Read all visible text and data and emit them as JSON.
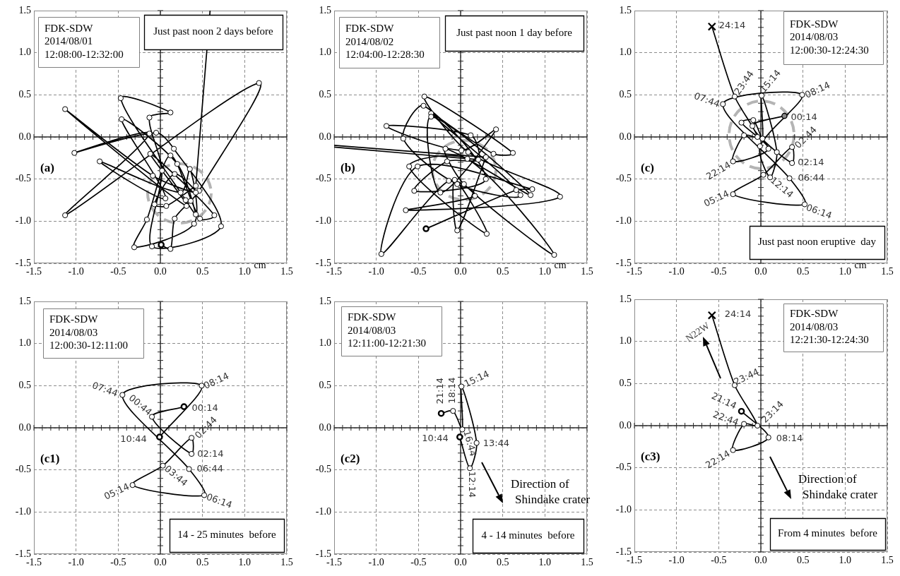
{
  "chart_data": [
    {
      "type": "line",
      "title": "(a)",
      "xlabel": "cm",
      "xlim": [
        -1.5,
        1.5
      ],
      "ylim": [
        -1.5,
        1.5
      ],
      "xticks": [
        -1.5,
        {
          "value": -1,
          "label": "-1.0"
        },
        -0.5,
        {
          "value": 0,
          "label": "0.0"
        },
        0.5,
        {
          "value": 1,
          "label": "1.0"
        },
        1.5
      ],
      "yticks": [
        -1.5,
        {
          "value": -1,
          "label": "-1.0"
        },
        -0.5,
        {
          "value": 0,
          "label": "0.0"
        },
        0.5,
        {
          "value": 1,
          "label": "1.0"
        },
        1.5
      ],
      "grid": true,
      "marker": "circle",
      "series": [
        {
          "color": "#000000",
          "x": [
            0.01,
            0.12,
            0.17,
            0.36,
            0.46,
            1.17,
            -1.13,
            -0.13,
            -1.02,
            -0.05,
            0.16,
            0.72,
            -0.1,
            0.02,
            -0.13,
            0.12,
            -0.47,
            0.3,
            0.42,
            0.2,
            -0.46,
            0.06,
            -0.72,
            0.24,
            0.35,
            0.4,
            -0.31,
            -0.16,
            0.12,
            0.47,
            0.64,
            -0.12,
            0.31,
            -1.13,
            -0.09,
            0.42,
            0.17,
            -0.07,
            0.07,
            0.42
          ],
          "values": [
            -1.28,
            -1.33,
            -0.97,
            -0.76,
            -0.64,
            0.64,
            -0.93,
            0.04,
            -0.19,
            0.05,
            -0.14,
            -1.06,
            -1.3,
            -0.4,
            0.23,
            0.29,
            0.46,
            -0.75,
            -0.92,
            -0.32,
            0.21,
            -0.73,
            -0.29,
            -0.66,
            -0.38,
            -1.03,
            -1.31,
            -0.98,
            -0.22,
            -0.97,
            -0.93,
            -0.2,
            -0.82,
            0.33,
            -0.46,
            -0.66,
            -0.44,
            -0.8,
            -0.82,
            -0.58
          ]
        },
        {
          "color": "#000000",
          "marker": "none",
          "x": [
            0.42,
            0.59
          ],
          "values": [
            -0.58,
            1.5
          ]
        }
      ],
      "annotations": [
        "FDK-SDW\n2014/08/01\n12:08:00-12:32:00",
        "Just past noon 2 days before"
      ]
    },
    {
      "type": "line",
      "title": "(b)",
      "xlabel": "cm",
      "xlim": [
        -1.5,
        1.5
      ],
      "ylim": [
        -1.5,
        1.5
      ],
      "xticks": [
        -1.5,
        {
          "value": -1,
          "label": "-1.0"
        },
        -0.5,
        {
          "value": 0,
          "label": "0.0"
        },
        0.5,
        {
          "value": 1,
          "label": "1.0"
        },
        1.5
      ],
      "yticks": [
        -1.5,
        {
          "value": -1,
          "label": "-1.0"
        },
        -0.5,
        {
          "value": 0,
          "label": "0.0"
        },
        0.5,
        {
          "value": 1,
          "label": "1.0"
        },
        1.5
      ],
      "grid": true,
      "marker": "circle",
      "series": [
        {
          "color": "#000000",
          "x": [
            -0.41,
            0.66,
            0.85,
            -0.51,
            -0.94,
            -0.14,
            0.17,
            -0.65,
            1.18,
            0.09,
            -0.43,
            0.62,
            0.39,
            -0.35,
            0.71,
            -0.04,
            -0.68,
            -0.44,
            0.3,
            -0.55,
            -0.16,
            0.21,
            0.12,
            -0.88,
            0.01,
            0.42,
            -0.24,
            -0.35,
            0.83,
            -0.18,
            0.04,
            1.11,
            0.08,
            -0.61,
            0.31,
            -0.07,
            -0.04,
            0.3
          ],
          "values": [
            -1.09,
            -0.63,
            -0.62,
            -0.35,
            -1.39,
            -0.52,
            -0.7,
            -0.87,
            -0.71,
            -0.18,
            0.48,
            -0.19,
            -0.2,
            0.28,
            -0.69,
            -0.56,
            -0.02,
            0.37,
            -0.5,
            -0.64,
            -0.29,
            -0.27,
            0.02,
            0.13,
            -0.16,
            0.09,
            -0.66,
            0.24,
            -0.69,
            -0.14,
            -0.56,
            -1.4,
            -0.26,
            -0.35,
            -1.15,
            -0.51,
            -1.11,
            -0.24
          ]
        },
        {
          "color": "#000000",
          "marker": "none",
          "x": [
            0.3,
            -1.5
          ],
          "values": [
            -0.24,
            -0.1
          ]
        },
        {
          "color": "#000000",
          "marker": "none",
          "x": [
            0.21,
            -1.5
          ],
          "values": [
            -0.27,
            -0.12
          ]
        }
      ],
      "annotations": [
        "FDK-SDW\n2014/08/02\n12:04:00-12:28:30",
        "Just past noon 1 day before"
      ]
    },
    {
      "type": "line",
      "title": "(c)",
      "xlabel": "cm",
      "xlim": [
        -1.5,
        1.5
      ],
      "ylim": [
        -1.5,
        1.5
      ],
      "xticks": [
        -1.5,
        {
          "value": -1,
          "label": "-1.0"
        },
        -0.5,
        {
          "value": 0,
          "label": "0.0"
        },
        0.5,
        {
          "value": 1,
          "label": "1.0"
        },
        1.5
      ],
      "yticks": [
        -1.5,
        {
          "value": -1,
          "label": "-1.0"
        },
        -0.5,
        {
          "value": 0,
          "label": "0.0"
        },
        0.5,
        {
          "value": 1,
          "label": "1.0"
        },
        1.5
      ],
      "grid": true,
      "marker": "circle",
      "series": [
        {
          "color": "#000000",
          "x": [
            0.28,
            -0.1,
            0.37,
            0.37,
            0.03,
            -0.33,
            0.52,
            0.34,
            -0.45,
            0.49,
            -0.01,
            0.11,
            0.19,
            0.01,
            0.02,
            -0.09,
            -0.23,
            0.09,
            -0.33,
            -0.2,
            -0.04,
            -0.31,
            -0.58
          ],
          "values": [
            0.25,
            0.13,
            -0.31,
            -0.12,
            -0.45,
            -0.68,
            -0.8,
            -0.49,
            0.39,
            0.5,
            -0.11,
            -0.48,
            -0.18,
            0.49,
            -0.02,
            0.2,
            0.17,
            -0.14,
            -0.29,
            0.02,
            0.0,
            0.48,
            1.31
          ]
        }
      ],
      "annotations": [
        "FDK-SDW\n2014/08/03\n12:00:30-12:24:30",
        "Just past noon eruptive  day",
        {
          "text": "24:14",
          "x": -0.58,
          "y": 1.31
        },
        {
          "text": "23:44",
          "x": -0.31,
          "y": 0.48
        },
        {
          "text": "15:14",
          "x": 0.01,
          "y": 0.49
        },
        {
          "text": "08:14",
          "x": 0.49,
          "y": 0.5
        },
        {
          "text": "07:44",
          "x": -0.45,
          "y": 0.39
        },
        {
          "text": "00:14",
          "x": 0.28,
          "y": 0.25
        },
        {
          "text": "02:44",
          "x": 0.37,
          "y": -0.12
        },
        {
          "text": "02:14",
          "x": 0.37,
          "y": -0.31
        },
        {
          "text": "22:14",
          "x": -0.33,
          "y": -0.29
        },
        {
          "text": "06:44",
          "x": 0.34,
          "y": -0.49
        },
        {
          "text": "12:14",
          "x": 0.11,
          "y": -0.48
        },
        {
          "text": "05:14",
          "x": -0.33,
          "y": -0.68
        },
        {
          "text": "06:14",
          "x": 0.52,
          "y": -0.8
        }
      ]
    },
    {
      "type": "line",
      "title": "(c1)",
      "xlim": [
        -1.5,
        1.5
      ],
      "ylim": [
        -1.5,
        1.5
      ],
      "xticks": [
        -1.5,
        {
          "value": -1,
          "label": "-1.0"
        },
        -0.5,
        {
          "value": 0,
          "label": "0.0"
        },
        0.5,
        {
          "value": 1,
          "label": "1.0"
        },
        1.5
      ],
      "yticks": [
        -1.5,
        {
          "value": -1,
          "label": "-1.0"
        },
        -0.5,
        {
          "value": 0,
          "label": "0.0"
        },
        0.5,
        {
          "value": 1,
          "label": "1.0"
        },
        1.5
      ],
      "grid": true,
      "marker": "circle",
      "series": [
        {
          "color": "#000000",
          "x": [
            0.28,
            -0.1,
            0.37,
            0.37,
            0.03,
            -0.33,
            0.52,
            0.34,
            -0.45,
            0.49,
            -0.01
          ],
          "values": [
            0.25,
            0.13,
            -0.31,
            -0.12,
            -0.45,
            -0.68,
            -0.8,
            -0.49,
            0.39,
            0.5,
            -0.11
          ]
        }
      ],
      "annotations": [
        "FDK-SDW\n2014/08/03\n12:00:30-12:11:00",
        "14 - 25 minutes  before",
        {
          "text": "00:14",
          "x": 0.28,
          "y": 0.25
        },
        {
          "text": "00:44",
          "x": -0.1,
          "y": 0.13
        },
        {
          "text": "02:14",
          "x": 0.37,
          "y": -0.31
        },
        {
          "text": "02:44",
          "x": 0.37,
          "y": -0.12
        },
        {
          "text": "03:44",
          "x": 0.03,
          "y": -0.45
        },
        {
          "text": "05:14",
          "x": -0.33,
          "y": -0.68
        },
        {
          "text": "06:14",
          "x": 0.52,
          "y": -0.8
        },
        {
          "text": "06:44",
          "x": 0.34,
          "y": -0.49
        },
        {
          "text": "07:44",
          "x": -0.45,
          "y": 0.39
        },
        {
          "text": "08:14",
          "x": 0.49,
          "y": 0.5
        },
        {
          "text": "10:44",
          "x": -0.01,
          "y": -0.11
        }
      ]
    },
    {
      "type": "line",
      "title": "(c2)",
      "xlim": [
        -1.5,
        1.5
      ],
      "ylim": [
        -1.5,
        1.5
      ],
      "xticks": [
        -1.5,
        {
          "value": -1,
          "label": "-1.0"
        },
        -0.5,
        {
          "value": 0,
          "label": "0.0"
        },
        0.5,
        {
          "value": 1,
          "label": "1.0"
        },
        1.5
      ],
      "yticks": [
        -1.5,
        {
          "value": -1,
          "label": "-1.0"
        },
        -0.5,
        {
          "value": 0,
          "label": "0.0"
        },
        0.5,
        {
          "value": 1,
          "label": "1.0"
        },
        1.5
      ],
      "grid": true,
      "marker": "circle",
      "series": [
        {
          "color": "#000000",
          "x": [
            -0.01,
            0.11,
            0.19,
            0.01,
            0.02,
            -0.09,
            -0.23
          ],
          "values": [
            -0.11,
            -0.48,
            -0.18,
            0.49,
            -0.02,
            0.2,
            0.17
          ]
        }
      ],
      "annotations": [
        "FDK-SDW\n2014/08/03\n12:11:00-12:21:30",
        "4 - 14 minutes  before",
        "Direction of\nShindake crater",
        {
          "text": "10:44",
          "x": -0.01,
          "y": -0.11
        },
        {
          "text": "12:14",
          "x": 0.11,
          "y": -0.48
        },
        {
          "text": "13:44",
          "x": 0.19,
          "y": -0.18
        },
        {
          "text": "15:14",
          "x": 0.01,
          "y": 0.49
        },
        {
          "text": "16:44",
          "x": 0.02,
          "y": -0.02
        },
        {
          "text": "18:14",
          "x": -0.09,
          "y": 0.2
        },
        {
          "text": "21:14",
          "x": -0.23,
          "y": 0.17
        }
      ]
    },
    {
      "type": "line",
      "title": "(c3)",
      "xlim": [
        -1.5,
        1.5
      ],
      "ylim": [
        -1.5,
        1.5
      ],
      "xticks": [
        -1.5,
        {
          "value": -1,
          "label": "-1.0"
        },
        -0.5,
        {
          "value": 0,
          "label": "0.0"
        },
        0.5,
        {
          "value": 1,
          "label": "1.0"
        },
        1.5
      ],
      "yticks": [
        -1.5,
        {
          "value": -1,
          "label": "-1.0"
        },
        -0.5,
        {
          "value": 0,
          "label": "0.0"
        },
        0.5,
        {
          "value": 1,
          "label": "1.0"
        },
        1.5
      ],
      "grid": true,
      "marker": "circle",
      "series": [
        {
          "color": "#000000",
          "x": [
            -0.23,
            0.09,
            -0.33,
            -0.2,
            -0.04,
            -0.31,
            -0.58
          ],
          "values": [
            0.17,
            -0.14,
            -0.29,
            0.02,
            0.0,
            0.48,
            1.31
          ]
        }
      ],
      "annotations": [
        "FDK-SDW\n2014/08/03\n12:21:30-12:24:30",
        "From 4 minutes  before",
        "N22W",
        "Direction of\nShindake crater",
        {
          "text": "21:14",
          "x": -0.23,
          "y": 0.17
        },
        {
          "text": "08:14",
          "x": 0.09,
          "y": -0.14
        },
        {
          "text": "22:14",
          "x": -0.33,
          "y": -0.29
        },
        {
          "text": "22:44",
          "x": -0.2,
          "y": 0.02
        },
        {
          "text": "23:14",
          "x": -0.04,
          "y": 0
        },
        {
          "text": "23:44",
          "x": -0.31,
          "y": 0.48
        },
        {
          "text": "24:14",
          "x": -0.58,
          "y": 1.31
        }
      ]
    }
  ]
}
